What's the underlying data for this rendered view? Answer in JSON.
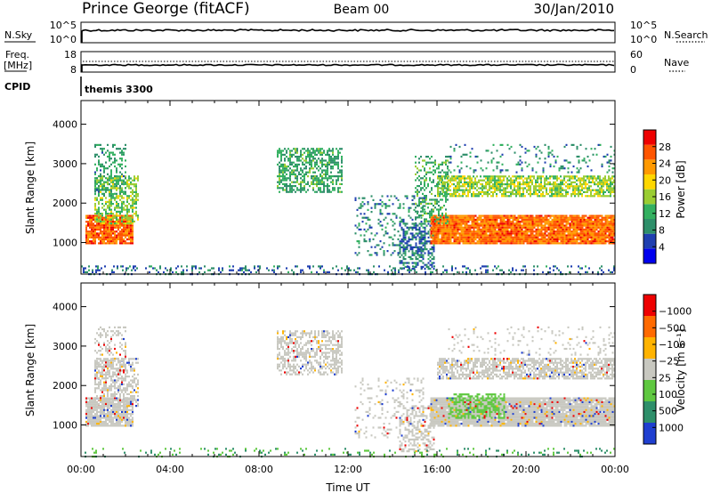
{
  "header": {
    "station": "Prince George (fitACF)",
    "beam": "Beam 00",
    "date": "30/Jan/2010"
  },
  "status_panels": {
    "nsky": {
      "label": "N.Sky",
      "ticks_left": [
        "10^5",
        "10^0"
      ]
    },
    "nsearch": {
      "label": "N.Search",
      "ticks_right": [
        "10^5",
        "10^0"
      ],
      "line_style": "dotted"
    },
    "freq": {
      "label_line1": "Freq.",
      "label_line2": "[MHz]",
      "ticks_left": [
        "18",
        "8"
      ]
    },
    "nave": {
      "label": "Nave",
      "ticks_right": [
        "60",
        "0"
      ],
      "line_style": "dotted"
    },
    "cpid": {
      "label": "CPID",
      "value": "themis 3300"
    }
  },
  "colors": {
    "power_scale": [
      "#0000ee",
      "#1f3fb0",
      "#2e8f6a",
      "#33b060",
      "#9acd32",
      "#ffd700",
      "#ff9900",
      "#ff5500",
      "#ee0000"
    ],
    "velocity_scale": [
      "#1f3fd0",
      "#2e8f6a",
      "#5fc840",
      "#c8c8c0",
      "#ffb300",
      "#ff6a00",
      "#ee0000"
    ]
  },
  "chart_data": [
    {
      "type": "heatmap",
      "name": "power",
      "ylabel": "Slant Range [km]",
      "xlabel": "",
      "xlim": [
        "00:00",
        "24:00"
      ],
      "ylim": [
        200,
        4600
      ],
      "yticks": [
        1000,
        2000,
        3000,
        4000
      ],
      "colorbar": {
        "label": "Power [dB]",
        "ticks": [
          "4",
          "8",
          "12",
          "16",
          "20",
          "24",
          "28"
        ],
        "range": [
          0,
          30
        ]
      },
      "scatter_regions": [
        {
          "t_start": 0.2,
          "t_end": 2.3,
          "r_min": 1000,
          "r_max": 1700,
          "level": 26,
          "density": 0.9
        },
        {
          "t_start": 0.6,
          "t_end": 2.6,
          "r_min": 1500,
          "r_max": 2700,
          "level": 14,
          "density": 0.55
        },
        {
          "t_start": 0.6,
          "t_end": 2.0,
          "r_min": 2200,
          "r_max": 3500,
          "level": 9,
          "density": 0.35
        },
        {
          "t_start": 8.8,
          "t_end": 11.7,
          "r_min": 2300,
          "r_max": 3400,
          "level": 10,
          "density": 0.55
        },
        {
          "t_start": 12.3,
          "t_end": 15.5,
          "r_min": 700,
          "r_max": 2200,
          "level": 7,
          "density": 0.18
        },
        {
          "t_start": 14.3,
          "t_end": 15.9,
          "r_min": 350,
          "r_max": 1500,
          "level": 6,
          "density": 0.5
        },
        {
          "t_start": 15.7,
          "t_end": 24.0,
          "r_min": 1000,
          "r_max": 1700,
          "level": 25,
          "density": 0.95
        },
        {
          "t_start": 16.0,
          "t_end": 24.0,
          "r_min": 2200,
          "r_max": 2700,
          "level": 15,
          "density": 0.7
        },
        {
          "t_start": 15.0,
          "t_end": 16.5,
          "r_min": 1500,
          "r_max": 3200,
          "level": 11,
          "density": 0.35
        },
        {
          "t_start": 16.5,
          "t_end": 24.0,
          "r_min": 2800,
          "r_max": 3500,
          "level": 8,
          "density": 0.12
        },
        {
          "t_start": 0.0,
          "t_end": 24.0,
          "r_min": 200,
          "r_max": 420,
          "level": 6,
          "density": 0.22
        }
      ]
    },
    {
      "type": "heatmap",
      "name": "velocity",
      "ylabel": "Slant Range [km]",
      "xlabel": "Time UT",
      "xlim": [
        "00:00",
        "24:00"
      ],
      "ylim": [
        200,
        4600
      ],
      "yticks": [
        1000,
        2000,
        3000,
        4000
      ],
      "xticks": [
        "00:00",
        "04:00",
        "08:00",
        "12:00",
        "16:00",
        "20:00",
        "00:00"
      ],
      "colorbar": {
        "label": "Velocity [m s⁻¹]",
        "ticks": [
          "1000",
          "500",
          "100",
          "25",
          "−25",
          "−100",
          "−500",
          "−1000"
        ]
      },
      "scatter_regions": [
        {
          "t_start": 0.2,
          "t_end": 2.3,
          "r_min": 1000,
          "r_max": 1700,
          "level": 0,
          "density": 0.9
        },
        {
          "t_start": 0.6,
          "t_end": 2.6,
          "r_min": 1500,
          "r_max": 2700,
          "level": 0,
          "density": 0.55
        },
        {
          "t_start": 0.6,
          "t_end": 2.0,
          "r_min": 2200,
          "r_max": 3500,
          "level": 0,
          "density": 0.3
        },
        {
          "t_start": 8.8,
          "t_end": 11.7,
          "r_min": 2300,
          "r_max": 3400,
          "level": 0,
          "density": 0.5
        },
        {
          "t_start": 12.3,
          "t_end": 15.5,
          "r_min": 700,
          "r_max": 2200,
          "level": 0,
          "density": 0.15
        },
        {
          "t_start": 14.3,
          "t_end": 15.9,
          "r_min": 350,
          "r_max": 1500,
          "level": 0,
          "density": 0.45
        },
        {
          "t_start": 15.7,
          "t_end": 24.0,
          "r_min": 1000,
          "r_max": 1700,
          "level": 0,
          "density": 0.95
        },
        {
          "t_start": 16.5,
          "t_end": 19.0,
          "r_min": 1200,
          "r_max": 1800,
          "level": 150,
          "density": 0.5
        },
        {
          "t_start": 16.0,
          "t_end": 24.0,
          "r_min": 2200,
          "r_max": 2700,
          "level": 0,
          "density": 0.7
        },
        {
          "t_start": 16.5,
          "t_end": 24.0,
          "r_min": 2800,
          "r_max": 3500,
          "level": 0,
          "density": 0.1
        },
        {
          "t_start": 0.0,
          "t_end": 24.0,
          "r_min": 200,
          "r_max": 420,
          "level": 100,
          "density": 0.12
        }
      ]
    }
  ]
}
